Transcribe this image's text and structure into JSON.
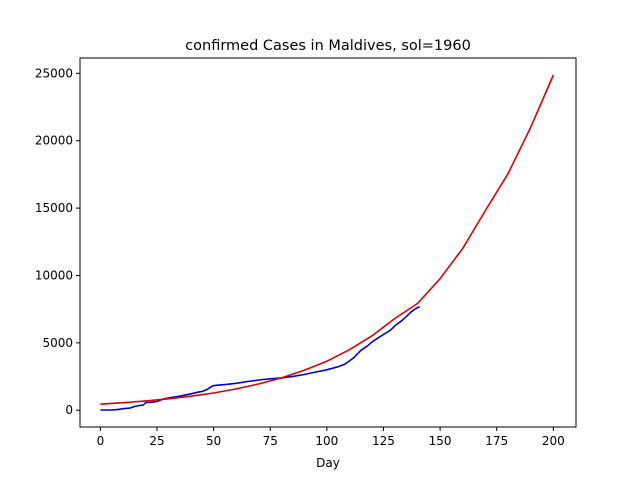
{
  "chart_data": {
    "type": "line",
    "title": "confirmed Cases in Maldives, sol=1960",
    "xlabel": "Day",
    "ylabel": "",
    "xlim": [
      -9,
      210
    ],
    "ylim": [
      -1245,
      26140
    ],
    "x_ticks": [
      0,
      25,
      50,
      75,
      100,
      125,
      150,
      175,
      200
    ],
    "y_ticks": [
      0,
      5000,
      10000,
      15000,
      20000,
      25000
    ],
    "grid": false,
    "series": [
      {
        "color": "#0000cc",
        "x": [
          0,
          5,
          8,
          10,
          13,
          15,
          17,
          19,
          20,
          22,
          25,
          28,
          30,
          35,
          40,
          43,
          45,
          47,
          49,
          50,
          55,
          60,
          65,
          70,
          75,
          80,
          85,
          90,
          95,
          100,
          105,
          108,
          110,
          112,
          115,
          118,
          120,
          123,
          125,
          128,
          130,
          133,
          135,
          137,
          139,
          141
        ],
        "y": [
          20,
          20,
          60,
          110,
          160,
          280,
          340,
          390,
          570,
          580,
          650,
          840,
          900,
          1040,
          1220,
          1340,
          1400,
          1520,
          1750,
          1830,
          1900,
          2000,
          2130,
          2240,
          2330,
          2400,
          2510,
          2650,
          2830,
          3000,
          3230,
          3420,
          3660,
          3910,
          4440,
          4780,
          5080,
          5410,
          5620,
          5930,
          6260,
          6640,
          6930,
          7270,
          7520,
          7680
        ]
      },
      {
        "color": "#dd0000",
        "x": [
          0,
          10,
          20,
          30,
          40,
          50,
          60,
          70,
          80,
          90,
          100,
          110,
          120,
          130,
          140,
          150,
          160,
          170,
          180,
          190,
          200
        ],
        "y": [
          450,
          560,
          690,
          850,
          1040,
          1280,
          1580,
          1950,
          2400,
          2960,
          3640,
          4490,
          5530,
          6810,
          7920,
          9760,
          12020,
          14820,
          17560,
          21000,
          24880
        ]
      }
    ]
  }
}
